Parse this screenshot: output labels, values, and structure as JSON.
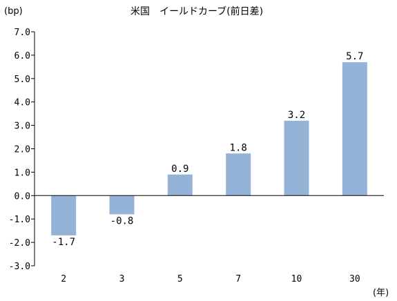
{
  "chart_data": {
    "type": "bar",
    "title": "米国　イールドカーブ(前日差)",
    "ylabel": "(bp)",
    "xlabel": "(年)",
    "categories": [
      "2",
      "3",
      "5",
      "7",
      "10",
      "30"
    ],
    "values": [
      -1.7,
      -0.8,
      0.9,
      1.8,
      3.2,
      5.7
    ],
    "data_labels": [
      "-1.7",
      "-0.8",
      "0.9",
      "1.8",
      "3.2",
      "5.7"
    ],
    "ylim": [
      -3.0,
      7.0
    ],
    "yticks": [
      "7.0",
      "6.0",
      "5.0",
      "4.0",
      "3.0",
      "2.0",
      "1.0",
      "0.0",
      "-1.0",
      "-2.0",
      "-3.0"
    ],
    "bar_color": "#95b3d7",
    "grid": false,
    "legend": "none"
  }
}
